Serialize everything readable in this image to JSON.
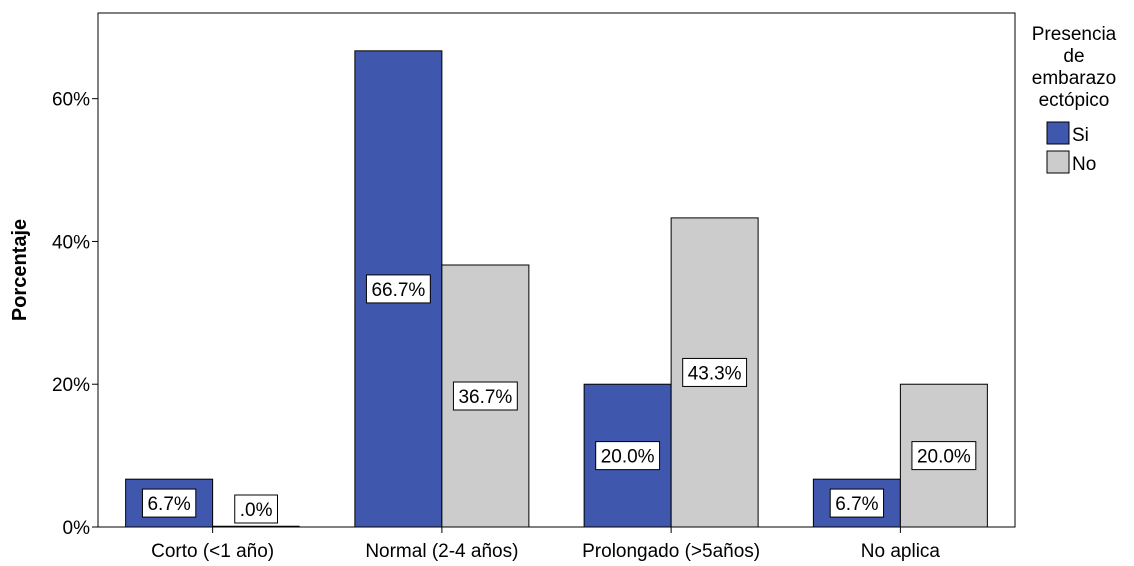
{
  "chart_data": {
    "type": "bar",
    "ylabel": "Porcentaje",
    "ylim": [
      0,
      72
    ],
    "yticks": [
      0,
      20,
      40,
      60
    ],
    "ytick_labels": [
      "0%",
      "20%",
      "40%",
      "60%"
    ],
    "categories": [
      "Corto (<1 año)",
      "Normal (2-4 años)",
      "Prolongado (>5años)",
      "No aplica"
    ],
    "legend": {
      "title_lines": [
        "Presencia",
        "de",
        "embarazo",
        "ectópico"
      ],
      "placement": "right"
    },
    "series": [
      {
        "name": "Si",
        "color": "#3f57ac",
        "values": [
          6.7,
          66.7,
          20.0,
          6.7
        ],
        "labels": [
          "6.7%",
          "66.7%",
          "20.0%",
          "6.7%"
        ]
      },
      {
        "name": "No",
        "color": "#cccccc",
        "values": [
          0.0,
          36.7,
          43.3,
          20.0
        ],
        "labels": [
          ".0%",
          "36.7%",
          "43.3%",
          "20.0%"
        ]
      }
    ]
  }
}
